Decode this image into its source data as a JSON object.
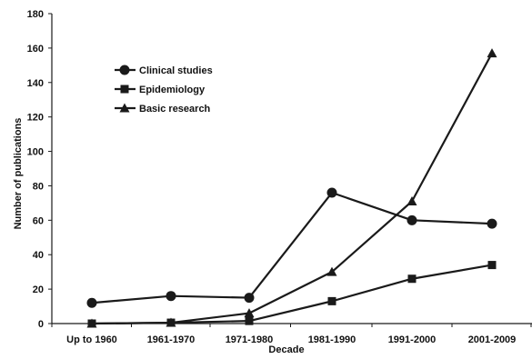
{
  "chart_data": {
    "type": "line",
    "title": "",
    "xlabel": "Decade",
    "ylabel": "Number of publications",
    "categories": [
      "Up to 1960",
      "1961-1970",
      "1971-1980",
      "1981-1990",
      "1991-2000",
      "2001-2009"
    ],
    "ylim": [
      0,
      180
    ],
    "yticks": [
      0,
      20,
      40,
      60,
      80,
      100,
      120,
      140,
      160,
      180
    ],
    "grid": false,
    "legend_position": "top-left",
    "line_color": "#1a1a1a",
    "series": [
      {
        "name": "Clinical studies",
        "marker": "circle",
        "values": [
          12,
          16,
          15,
          76,
          60,
          58
        ]
      },
      {
        "name": "Epidemiology",
        "marker": "square",
        "values": [
          0,
          0.5,
          1.5,
          13,
          26,
          34
        ]
      },
      {
        "name": "Basic research",
        "marker": "triangle",
        "values": [
          0,
          0.5,
          6,
          30,
          71,
          157
        ]
      }
    ]
  }
}
